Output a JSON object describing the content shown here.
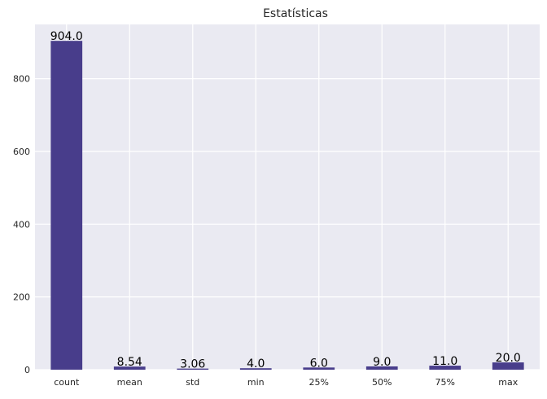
{
  "chart_data": {
    "type": "bar",
    "title": "Estatísticas",
    "xlabel": "",
    "ylabel": "",
    "categories": [
      "count",
      "mean",
      "std",
      "min",
      "25%",
      "50%",
      "75%",
      "max"
    ],
    "values": [
      904.0,
      8.54,
      3.06,
      4.0,
      6.0,
      9.0,
      11.0,
      20.0
    ],
    "data_labels": [
      "904.0",
      "8.54",
      "3.06",
      "4.0",
      "6.0",
      "9.0",
      "11.0",
      "20.0"
    ],
    "yticks": [
      0,
      200,
      400,
      600,
      800
    ],
    "ylim": [
      0,
      949.2
    ],
    "grid": true,
    "legend": "none",
    "colors": {
      "bar": "#483D8B",
      "plot_background": "#EAEAF2",
      "grid": "#FFFFFF",
      "text": "#262626"
    }
  }
}
